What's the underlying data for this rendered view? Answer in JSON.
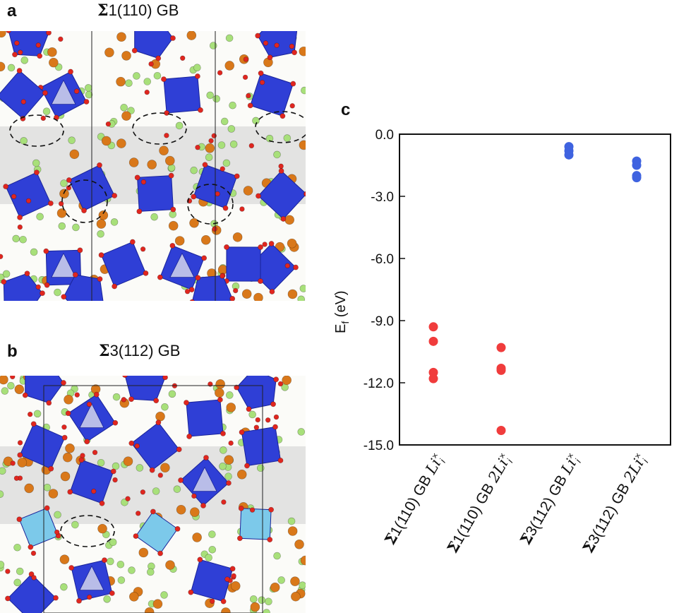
{
  "panels": {
    "a": {
      "letter": "a",
      "title_sigma": "Σ",
      "title_rest": "1(110) GB"
    },
    "b": {
      "letter": "b",
      "title_sigma": "Σ",
      "title_rest": "3(112) GB"
    },
    "c": {
      "letter": "c"
    }
  },
  "colors": {
    "polyhedron": "#2f3fd6",
    "polyhedron_light": "#b9bde8",
    "polyhedron_cyan": "#7cc9ea",
    "oxygen": "#e0261f",
    "metal_orange": "#d9781a",
    "lithium_green": "#a8e07a",
    "gb_band": "#cfcfcf",
    "red_points": "#f03c3c",
    "blue_points": "#3f63e0"
  },
  "chart_data": {
    "type": "scatter",
    "ylabel_main": "E",
    "ylabel_sub": "f",
    "ylabel_unit": " (eV)",
    "ylim": [
      -15.0,
      0.0
    ],
    "yticks": [
      "0.0",
      "-3.0",
      "-6.0",
      "-9.0",
      "-12.0",
      "-15.0"
    ],
    "ytick_values": [
      0.0,
      -3.0,
      -6.0,
      -9.0,
      -12.0,
      -15.0
    ],
    "categories": [
      {
        "sigma": "Σ",
        "rest": "1(110) GB ",
        "prefix": "",
        "li": "Li",
        "sup": "×",
        "sub": "i"
      },
      {
        "sigma": "Σ",
        "rest": "1(110) GB ",
        "prefix": "2",
        "li": "Li",
        "sup": "×",
        "sub": "i"
      },
      {
        "sigma": "Σ",
        "rest": "3(112) GB ",
        "prefix": "",
        "li": "Li",
        "sup": "×",
        "sub": "i"
      },
      {
        "sigma": "Σ",
        "rest": "3(112) GB ",
        "prefix": "2",
        "li": "Li",
        "sup": "×",
        "sub": "i"
      }
    ],
    "series": [
      {
        "category_index": 0,
        "color": "#f03c3c",
        "values": [
          -9.3,
          -10.0,
          -11.5,
          -11.8
        ]
      },
      {
        "category_index": 1,
        "color": "#f03c3c",
        "values": [
          -10.3,
          -11.3,
          -11.4,
          -14.3
        ]
      },
      {
        "category_index": 2,
        "color": "#3f63e0",
        "values": [
          -0.6,
          -0.8,
          -1.0
        ]
      },
      {
        "category_index": 3,
        "color": "#3f63e0",
        "values": [
          -1.3,
          -1.5,
          -2.0,
          -2.1
        ]
      }
    ],
    "grid": false,
    "legend": "none"
  }
}
